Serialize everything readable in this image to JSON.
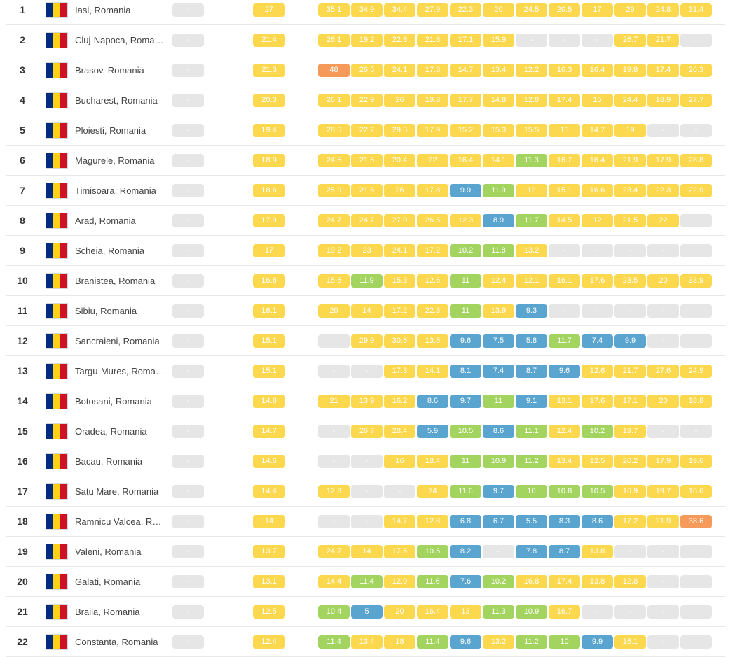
{
  "colors": {
    "flag": [
      "#002B7F",
      "#FCD116",
      "#CE1126"
    ],
    "none": "#e6e6e6",
    "green": "#a3d45f",
    "yellow": "#fbd84e",
    "orange": "#f59a5a",
    "blue": "#5aa4d0"
  },
  "months_icon": "romania-flag-icon",
  "rows": [
    {
      "rank": "1",
      "city": "Iasi, Romania",
      "live": "-",
      "avg": "27",
      "months": [
        "35.1",
        "34.9",
        "34.4",
        "27.9",
        "22.3",
        "20",
        "24.5",
        "20.5",
        "17",
        "29",
        "24.8",
        "31.4"
      ]
    },
    {
      "rank": "2",
      "city": "Cluj-Napoca, Romania",
      "live": "-",
      "avg": "21.4",
      "months": [
        "26.1",
        "19.2",
        "22.6",
        "21.8",
        "17.1",
        "15.9",
        "-",
        "-",
        "-",
        "26.7",
        "21.7",
        "-"
      ]
    },
    {
      "rank": "3",
      "city": "Brasov, Romania",
      "live": "-",
      "avg": "21.3",
      "months": [
        "48",
        "26.5",
        "24.1",
        "17.8",
        "14.7",
        "13.4",
        "12.2",
        "16.3",
        "16.4",
        "19.8",
        "17.4",
        "26.3"
      ]
    },
    {
      "rank": "4",
      "city": "Bucharest, Romania",
      "live": "-",
      "avg": "20.3",
      "months": [
        "26.1",
        "22.9",
        "26",
        "19.8",
        "17.7",
        "14.8",
        "12.8",
        "17.4",
        "15",
        "24.4",
        "18.9",
        "27.7"
      ]
    },
    {
      "rank": "5",
      "city": "Ploiesti, Romania",
      "live": "-",
      "avg": "19.4",
      "months": [
        "28.5",
        "22.7",
        "29.5",
        "17.9",
        "15.2",
        "15.3",
        "15.5",
        "15",
        "14.7",
        "19",
        "-",
        "-"
      ]
    },
    {
      "rank": "6",
      "city": "Magurele, Romania",
      "live": "-",
      "avg": "18.9",
      "months": [
        "24.5",
        "21.5",
        "20.4",
        "22",
        "16.4",
        "14.1",
        "11.3",
        "16.7",
        "16.4",
        "21.9",
        "17.9",
        "28.8"
      ]
    },
    {
      "rank": "7",
      "city": "Timisoara, Romania",
      "live": "-",
      "avg": "18.6",
      "months": [
        "25.9",
        "21.6",
        "26",
        "17.8",
        "9.9",
        "11.9",
        "12",
        "15.1",
        "16.6",
        "23.4",
        "22.3",
        "22.9"
      ]
    },
    {
      "rank": "8",
      "city": "Arad, Romania",
      "live": "-",
      "avg": "17.9",
      "months": [
        "24.7",
        "24.7",
        "27.9",
        "26.5",
        "12.3",
        "8.9",
        "11.7",
        "14.5",
        "12",
        "21.5",
        "22",
        "-"
      ]
    },
    {
      "rank": "9",
      "city": "Scheia, Romania",
      "live": "-",
      "avg": "17",
      "months": [
        "19.2",
        "23",
        "24.1",
        "17.2",
        "10.2",
        "11.8",
        "13.2",
        "-",
        "-",
        "-",
        "-",
        "-"
      ]
    },
    {
      "rank": "10",
      "city": "Branistea, Romania",
      "live": "-",
      "avg": "16.8",
      "months": [
        "15.6",
        "11.9",
        "15.3",
        "12.6",
        "11",
        "12.4",
        "12.1",
        "16.1",
        "17.6",
        "23.5",
        "20",
        "33.9"
      ]
    },
    {
      "rank": "11",
      "city": "Sibiu, Romania",
      "live": "-",
      "avg": "16.1",
      "months": [
        "20",
        "14",
        "17.2",
        "22.3",
        "11",
        "13.9",
        "9.3",
        "-",
        "-",
        "-",
        "-",
        "-"
      ]
    },
    {
      "rank": "12",
      "city": "Sancraieni, Romania",
      "live": "-",
      "avg": "15.1",
      "months": [
        "-",
        "29.9",
        "30.6",
        "13.5",
        "9.6",
        "7.5",
        "5.8",
        "11.7",
        "7.4",
        "9.9",
        "-",
        "-"
      ]
    },
    {
      "rank": "13",
      "city": "Targu-Mures, Romania",
      "live": "-",
      "avg": "15.1",
      "months": [
        "-",
        "-",
        "17.3",
        "14.1",
        "8.1",
        "7.4",
        "8.7",
        "9.6",
        "12.6",
        "21.7",
        "27.6",
        "24.9"
      ]
    },
    {
      "rank": "14",
      "city": "Botosani, Romania",
      "live": "-",
      "avg": "14.8",
      "months": [
        "21",
        "13.9",
        "16.2",
        "8.6",
        "9.7",
        "11",
        "9.1",
        "13.1",
        "17.6",
        "17.1",
        "20",
        "18.8"
      ]
    },
    {
      "rank": "15",
      "city": "Oradea, Romania",
      "live": "-",
      "avg": "14.7",
      "months": [
        "-",
        "26.7",
        "28.4",
        "5.9",
        "10.5",
        "8.6",
        "11.1",
        "12.4",
        "10.2",
        "19.7",
        "-",
        "-"
      ]
    },
    {
      "rank": "16",
      "city": "Bacau, Romania",
      "live": "-",
      "avg": "14.6",
      "months": [
        "-",
        "-",
        "16",
        "18.4",
        "11",
        "10.9",
        "11.2",
        "13.4",
        "12.5",
        "20.2",
        "17.9",
        "19.6"
      ]
    },
    {
      "rank": "17",
      "city": "Satu Mare, Romania",
      "live": "-",
      "avg": "14.4",
      "months": [
        "12.3",
        "-",
        "-",
        "24",
        "11.6",
        "9.7",
        "10",
        "10.8",
        "10.5",
        "16.9",
        "19.7",
        "16.6"
      ]
    },
    {
      "rank": "18",
      "city": "Ramnicu Valcea, Romania",
      "live": "-",
      "avg": "14",
      "months": [
        "-",
        "-",
        "14.7",
        "12.8",
        "6.8",
        "6.7",
        "5.5",
        "8.3",
        "8.6",
        "17.2",
        "21.9",
        "38.6"
      ]
    },
    {
      "rank": "19",
      "city": "Valeni, Romania",
      "live": "-",
      "avg": "13.7",
      "months": [
        "24.7",
        "14",
        "17.5",
        "10.5",
        "8.2",
        "-",
        "7.8",
        "8.7",
        "13.8",
        "-",
        "-",
        "-"
      ]
    },
    {
      "rank": "20",
      "city": "Galati, Romania",
      "live": "-",
      "avg": "13.1",
      "months": [
        "14.4",
        "11.4",
        "12.9",
        "11.6",
        "7.6",
        "10.2",
        "16.8",
        "17.4",
        "13.8",
        "12.8",
        "-",
        "-"
      ]
    },
    {
      "rank": "21",
      "city": "Braila, Romania",
      "live": "-",
      "avg": "12.5",
      "months": [
        "10.4",
        "5",
        "20",
        "16.4",
        "13",
        "11.3",
        "10.9",
        "16.7",
        "-",
        "-",
        "-",
        "-"
      ]
    },
    {
      "rank": "22",
      "city": "Constanta, Romania",
      "live": "-",
      "avg": "12.4",
      "months": [
        "11.4",
        "13.4",
        "18",
        "11.4",
        "9.6",
        "13.2",
        "11.2",
        "10",
        "9.9",
        "16.1",
        "-",
        "-"
      ]
    }
  ]
}
